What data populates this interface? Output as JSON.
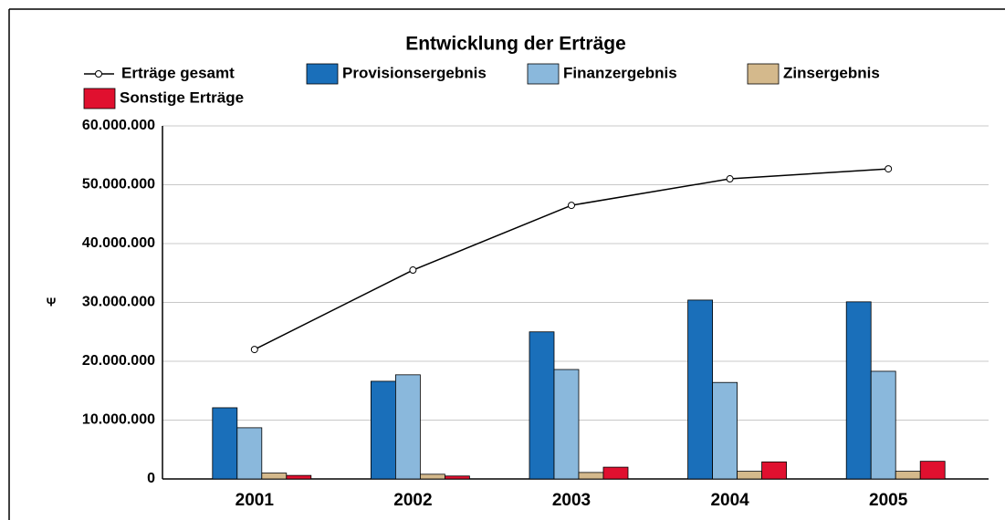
{
  "chart_data": {
    "type": "bar_line",
    "title": "Entwicklung der Erträge",
    "y_label": "Ψ",
    "categories": [
      "2001",
      "2002",
      "2003",
      "2004",
      "2005"
    ],
    "series": [
      {
        "name": "Erträge gesamt",
        "type": "line",
        "color": "#000000",
        "values": [
          22000000,
          35500000,
          46500000,
          51000000,
          52700000
        ]
      },
      {
        "name": "Provisionsergebnis",
        "type": "bar",
        "color": "#1a6fba",
        "values": [
          12100000,
          16600000,
          25000000,
          30400000,
          30100000
        ]
      },
      {
        "name": "Finanzergebnis",
        "type": "bar",
        "color": "#8ab8dc",
        "values": [
          8700000,
          17700000,
          18600000,
          16400000,
          18300000
        ]
      },
      {
        "name": "Zinsergebnis",
        "type": "bar",
        "color": "#d4b98c",
        "values": [
          1000000,
          800000,
          1100000,
          1300000,
          1300000
        ]
      },
      {
        "name": "Sonstige Erträge",
        "type": "bar",
        "color": "#e0102f",
        "values": [
          600000,
          500000,
          2000000,
          2900000,
          3000000
        ]
      }
    ],
    "ylim": [
      0,
      60000000
    ],
    "yticks": [
      0,
      {
        "value": 10000000,
        "label": "10.000.000"
      },
      {
        "value": 20000000,
        "label": "20.000.000"
      },
      {
        "value": 30000000,
        "label": "30.000.000"
      },
      {
        "value": 40000000,
        "label": "40.000.000"
      },
      {
        "value": 50000000,
        "label": "50.000.000"
      },
      {
        "value": 60000000,
        "label": "60.000.000"
      }
    ],
    "grid": true
  }
}
